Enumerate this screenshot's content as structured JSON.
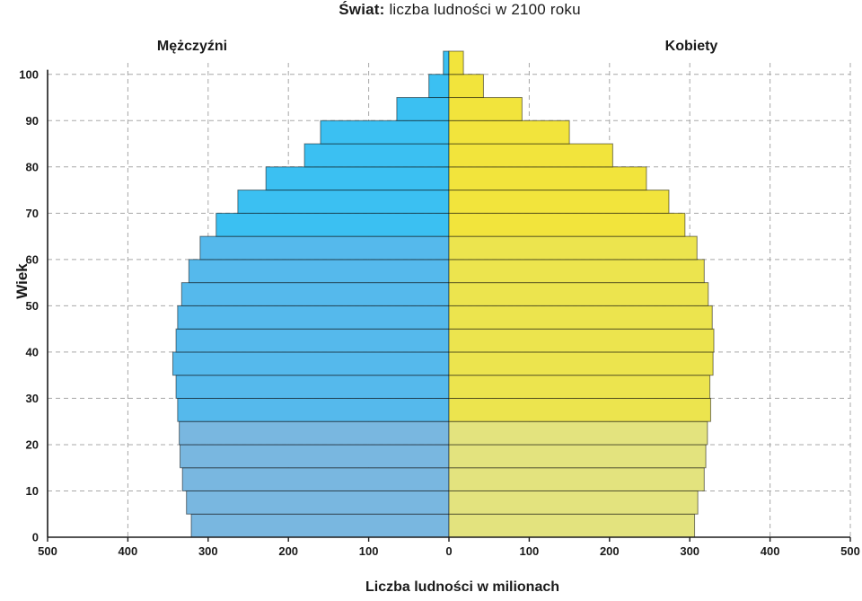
{
  "title": {
    "prefix": "Świat:",
    "rest": "liczba ludności w 2100 roku"
  },
  "labels": {
    "male": "Mężczyźni",
    "female": "Kobiety",
    "y_axis": "Wiek",
    "x_axis": "Liczba ludności w milionach"
  },
  "chart_data": {
    "type": "bar",
    "subtype": "population-pyramid",
    "title": "Świat: liczba ludności w 2100 roku",
    "xlabel": "Liczba ludności w milionach",
    "ylabel": "Wiek",
    "age_group_years": 5,
    "age_groups": [
      "0-4",
      "5-9",
      "10-14",
      "15-19",
      "20-24",
      "25-29",
      "30-34",
      "35-39",
      "40-44",
      "45-49",
      "50-54",
      "55-59",
      "60-64",
      "65-69",
      "70-74",
      "75-79",
      "80-84",
      "85-89",
      "90-94",
      "95-99",
      "100+"
    ],
    "series": [
      {
        "name": "Mężczyźni",
        "side": "left",
        "values_millions": [
          321,
          327,
          332,
          335,
          336,
          338,
          340,
          344,
          340,
          338,
          333,
          324,
          310,
          290,
          263,
          228,
          180,
          160,
          65,
          25,
          7
        ]
      },
      {
        "name": "Kobiety",
        "side": "right",
        "values_millions": [
          306,
          310,
          318,
          320,
          322,
          326,
          325,
          329,
          330,
          328,
          323,
          318,
          309,
          294,
          274,
          246,
          204,
          150,
          91,
          43,
          18
        ]
      }
    ],
    "x_ticks_millions": [
      "500",
      "400",
      "300",
      "200",
      "100",
      "0",
      "100",
      "200",
      "300",
      "400",
      "500"
    ],
    "y_ticks_age": [
      0,
      10,
      20,
      30,
      40,
      50,
      60,
      70,
      80,
      90,
      100
    ],
    "xlim_millions": 500,
    "ylim_age": [
      0,
      105
    ],
    "grid": "dashed",
    "age_bands": [
      {
        "min_age": 0,
        "max_age": 24,
        "male_color": "#79b7e0",
        "female_color": "#e3e37e"
      },
      {
        "min_age": 25,
        "max_age": 64,
        "male_color": "#55b9ec",
        "female_color": "#ece44e"
      },
      {
        "min_age": 65,
        "max_age": 105,
        "male_color": "#3bc0f2",
        "female_color": "#f2e43c"
      }
    ],
    "bar_border_color": "rgba(0,0,0,0.5)",
    "gridline_color": "#a8a8a8",
    "axis_color": "#1c1c1c"
  }
}
